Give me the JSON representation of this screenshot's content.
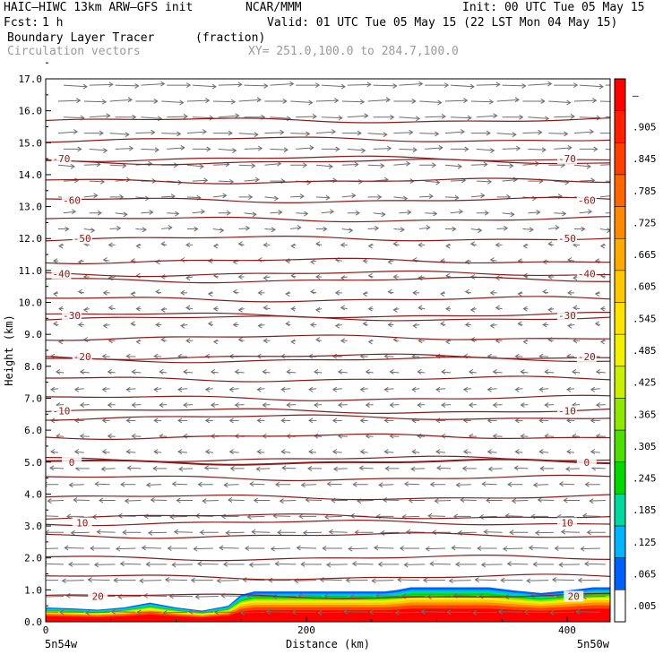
{
  "header": {
    "model": "HAIC–HIWC 13km ARW–GFS init",
    "org": "NCAR/MMM",
    "init": "Init: 00 UTC Tue 05 May 15",
    "fcst_label": "Fcst:",
    "fcst_value": "1 h",
    "valid": "Valid: 01 UTC Tue 05 May 15 (22 LST Mon 04 May 15)",
    "field_name": "Boundary Layer Tracer",
    "field_unit": "(fraction)",
    "vector_name": "Circulation vectors",
    "xy": "XY= 251.0,100.0 to 284.7,100.0"
  },
  "chart_data": {
    "type": "heatmap",
    "xlabel": "Distance (km)",
    "ylabel": "Height (km)",
    "xlim": [
      0,
      433
    ],
    "ylim": [
      0,
      17
    ],
    "x_ticks": [
      {
        "value": 0,
        "label": "0"
      },
      {
        "value": 200,
        "label": "200"
      },
      {
        "value": 400,
        "label": "400"
      }
    ],
    "x_end_labels": {
      "left": "5n54w",
      "right": "5n50w"
    },
    "y_ticks": [
      "0.0",
      "1.0",
      "2.0",
      "3.0",
      "4.0",
      "5.0",
      "6.0",
      "7.0",
      "8.0",
      "9.0",
      "10.0",
      "11.0",
      "12.0",
      "13.0",
      "14.0",
      "15.0",
      "16.0",
      "17.0"
    ],
    "colorbar": {
      "labels": [
        "–",
        ".905",
        ".845",
        ".785",
        ".725",
        ".665",
        ".605",
        ".545",
        ".485",
        ".425",
        ".365",
        ".305",
        ".245",
        ".185",
        ".125",
        ".065",
        ".005"
      ],
      "colors": [
        "#ff0000",
        "#ff2000",
        "#ff4000",
        "#ff6600",
        "#ff8a00",
        "#ffaa00",
        "#ffc800",
        "#ffe400",
        "#f2f200",
        "#c8f000",
        "#90e800",
        "#4ede00",
        "#00d800",
        "#00d8a0",
        "#00b4ff",
        "#0060ff",
        "#ffffff"
      ]
    },
    "temperature_contours": [
      {
        "label": "-70",
        "height": 14.5
      },
      {
        "label": "-60",
        "height": 13.2
      },
      {
        "label": "-50",
        "height": 12.0
      },
      {
        "label": "-40",
        "height": 10.9
      },
      {
        "label": "-30",
        "height": 9.6
      },
      {
        "label": "-20",
        "height": 8.3
      },
      {
        "label": "-10",
        "height": 6.6
      },
      {
        "label": "0",
        "height": 5.0
      },
      {
        "label": "10",
        "height": 3.1
      },
      {
        "label": "20",
        "height": 0.8
      }
    ],
    "tracer_top_km": [
      [
        0,
        0.45
      ],
      [
        20,
        0.42
      ],
      [
        40,
        0.38
      ],
      [
        60,
        0.45
      ],
      [
        80,
        0.6
      ],
      [
        100,
        0.45
      ],
      [
        120,
        0.35
      ],
      [
        140,
        0.5
      ],
      [
        150,
        0.85
      ],
      [
        160,
        0.95
      ],
      [
        200,
        0.95
      ],
      [
        260,
        0.95
      ],
      [
        270,
        1.0
      ],
      [
        280,
        1.08
      ],
      [
        340,
        1.08
      ],
      [
        360,
        0.98
      ],
      [
        380,
        0.9
      ],
      [
        400,
        0.98
      ],
      [
        420,
        1.08
      ],
      [
        433,
        1.08
      ]
    ]
  }
}
